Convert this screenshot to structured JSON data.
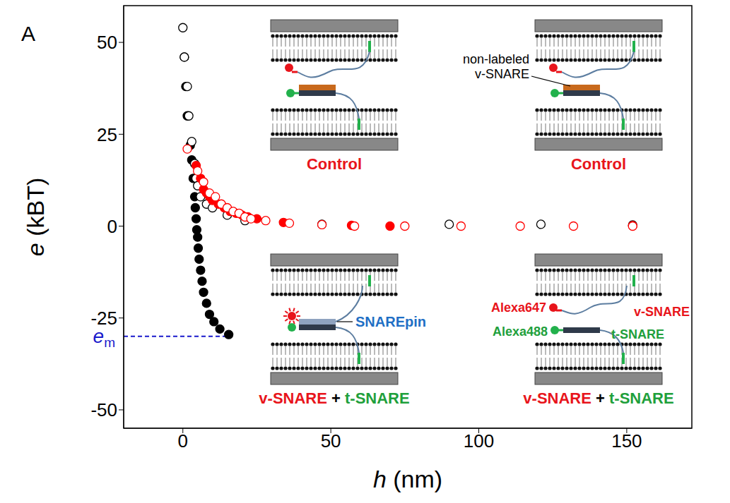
{
  "panel_label": "A",
  "chart_data": {
    "type": "scatter",
    "xlabel": "h (nm)",
    "ylabel": "e (kBT)",
    "xlim": [
      -20,
      172
    ],
    "ylim": [
      -55,
      60
    ],
    "xticks": [
      0,
      50,
      100,
      150
    ],
    "yticks": [
      -50,
      -25,
      0,
      25,
      50
    ],
    "grid": false,
    "series": [
      {
        "color": "#000000",
        "marker": "filled",
        "x": [
          0.5,
          1,
          1.5,
          2.5,
          3,
          3.5,
          4,
          4.2,
          4.5,
          4.7,
          5,
          5.2,
          5.5,
          6,
          6.5,
          7,
          8,
          9,
          10.5,
          12.5,
          15.5
        ],
        "values": [
          46,
          38,
          30,
          22,
          18,
          13,
          8,
          5,
          2,
          -1,
          -3,
          -6,
          -9,
          -12,
          -15,
          -18,
          -21,
          -24,
          -26,
          -28,
          -29.5
        ]
      },
      {
        "color": "#000000",
        "marker": "open",
        "x": [
          0,
          0.5,
          1.5,
          2,
          3,
          4,
          4.5,
          5,
          6,
          8,
          10,
          15,
          21,
          47,
          90,
          121,
          152
        ],
        "values": [
          54,
          46,
          38,
          30,
          23,
          17,
          13,
          11,
          8,
          6,
          5,
          3,
          1.5,
          0.5,
          0.5,
          0.5,
          0.3
        ]
      },
      {
        "color": "#ff0000",
        "marker": "filled",
        "x": [
          4.5,
          6,
          7,
          8,
          9,
          10,
          12,
          14,
          16,
          18,
          20,
          22,
          25,
          34,
          57,
          70,
          152
        ],
        "values": [
          16.5,
          13,
          10,
          9,
          8,
          7,
          6,
          5,
          4,
          3.5,
          3,
          2.5,
          2,
          1,
          0.2,
          0,
          0.1
        ]
      },
      {
        "color": "#ff0000",
        "marker": "open",
        "x": [
          1.5,
          5,
          7,
          9,
          11,
          13,
          15,
          17,
          19,
          21,
          23,
          28,
          36,
          47,
          58,
          75,
          94,
          114,
          132,
          152
        ],
        "values": [
          21,
          15,
          12,
          9,
          8,
          6,
          5,
          4,
          3.5,
          2.5,
          2,
          1.5,
          0.8,
          0.4,
          0,
          0,
          0,
          0,
          0,
          0
        ]
      }
    ],
    "annotations": [
      {
        "text": "em",
        "y": -30,
        "x": [
          -20,
          15.5
        ],
        "color": "#1a1acc"
      }
    ]
  },
  "insets": [
    {
      "caption": [
        {
          "text": "Control",
          "color": "#e8141b"
        }
      ],
      "labels": []
    },
    {
      "caption": [
        {
          "text": "Control",
          "color": "#e8141b"
        }
      ],
      "labels": [
        {
          "text": "non-labeled v-SNARE",
          "color": "#000000"
        }
      ]
    },
    {
      "caption": [
        {
          "text": "v-SNARE",
          "color": "#e8141b"
        },
        {
          "text": " + ",
          "color": "#000000"
        },
        {
          "text": "t-SNARE",
          "color": "#1fa03c"
        }
      ],
      "labels": [
        {
          "text": "SNAREpin",
          "color": "#1f6fc5"
        }
      ]
    },
    {
      "caption": [
        {
          "text": "v-SNARE",
          "color": "#e8141b"
        },
        {
          "text": " + ",
          "color": "#000000"
        },
        {
          "text": "t-SNARE",
          "color": "#1fa03c"
        }
      ],
      "labels": [
        {
          "text": "Alexa647",
          "color": "#e8141b"
        },
        {
          "text": "v-SNARE",
          "color": "#e8141b"
        },
        {
          "text": "Alexa488",
          "color": "#1fa03c"
        },
        {
          "text": "t-SNARE",
          "color": "#1fa03c"
        }
      ]
    }
  ]
}
